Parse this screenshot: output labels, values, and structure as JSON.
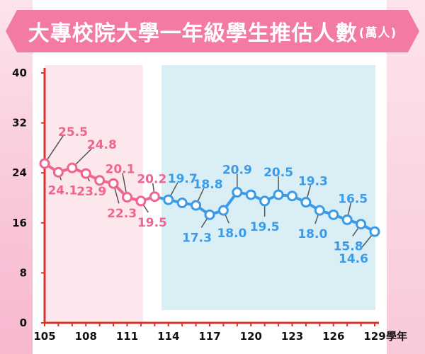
{
  "title": {
    "main": "大專校院大學一年級學生推估人數",
    "sub": "(萬人)"
  },
  "colors": {
    "banner": "#f27aa3",
    "axis": "#d9342b",
    "actual": "#f06590",
    "projected": "#3b9be8",
    "actual_bg": "#fbe7ec",
    "projected_bg": "#daeef5",
    "marker_fill": "#ffffff"
  },
  "chart_data": {
    "type": "line",
    "title": "大專校院大學一年級學生推估人數",
    "unit": "(萬人)",
    "xlabel": "學年",
    "ylabel": "",
    "xlim": [
      105,
      129
    ],
    "ylim": [
      0,
      40
    ],
    "x_ticks": [
      "105",
      "108",
      "111",
      "114",
      "117",
      "120",
      "123",
      "126",
      "129"
    ],
    "y_ticks": [
      "0",
      "8",
      "16",
      "24",
      "32",
      "40"
    ],
    "grid": false,
    "series": [
      {
        "key": "actual",
        "x": [
          105,
          106,
          107,
          108,
          109,
          110,
          111,
          112,
          113
        ],
        "values": [
          25.5,
          24.1,
          24.8,
          23.9,
          22.8,
          22.3,
          20.1,
          19.5,
          20.2
        ]
      },
      {
        "key": "projected",
        "x": [
          114,
          115,
          116,
          117,
          118,
          119,
          120,
          121,
          122,
          123,
          124,
          125,
          126,
          127,
          128,
          129
        ],
        "values": [
          19.7,
          19.2,
          18.8,
          17.3,
          18.0,
          20.9,
          20.5,
          19.5,
          20.5,
          20.3,
          19.3,
          18.0,
          17.3,
          16.5,
          15.8,
          14.6
        ]
      }
    ],
    "data_labels": [
      {
        "x": 105,
        "text": "25.5"
      },
      {
        "x": 106,
        "text": "24.1"
      },
      {
        "x": 107,
        "text": "24.8"
      },
      {
        "x": 108,
        "text": "23.9"
      },
      {
        "x": 110,
        "text": "22.3"
      },
      {
        "x": 111,
        "text": "20.1"
      },
      {
        "x": 112,
        "text": "19.5"
      },
      {
        "x": 113,
        "text": "20.2"
      },
      {
        "x": 114,
        "text": "19.7"
      },
      {
        "x": 116,
        "text": "18.8"
      },
      {
        "x": 117,
        "text": "17.3"
      },
      {
        "x": 118,
        "text": "18.0"
      },
      {
        "x": 119,
        "text": "20.9"
      },
      {
        "x": 121,
        "text": "19.5"
      },
      {
        "x": 122,
        "text": "20.5"
      },
      {
        "x": 124,
        "text": "19.3"
      },
      {
        "x": 125,
        "text": "18.0"
      },
      {
        "x": 127,
        "text": "16.5"
      },
      {
        "x": 128,
        "text": "15.8"
      },
      {
        "x": 129,
        "text": "14.6"
      }
    ]
  }
}
